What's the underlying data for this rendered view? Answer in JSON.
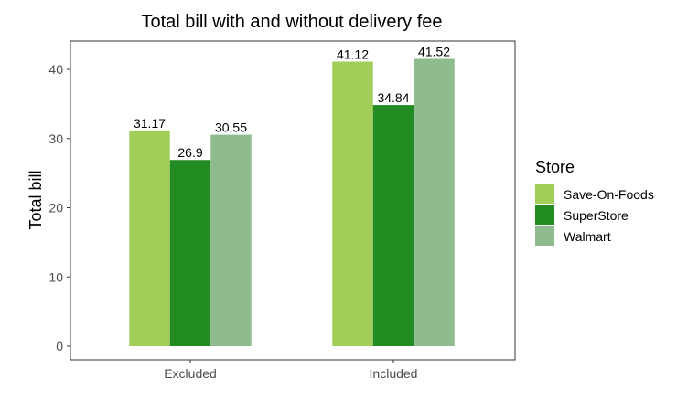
{
  "chart_data": {
    "type": "bar",
    "title": "Total bill with and without delivery fee",
    "xlabel": "",
    "ylabel": "Total bill",
    "categories": [
      "Excluded",
      "Included"
    ],
    "series": [
      {
        "name": "Save-On-Foods",
        "values": [
          31.17,
          41.12
        ],
        "labels": [
          "31.17",
          "41.12"
        ],
        "color": "#a1cd59"
      },
      {
        "name": "SuperStore",
        "values": [
          26.9,
          34.84
        ],
        "labels": [
          "26.9",
          "34.84"
        ],
        "color": "#228b22"
      },
      {
        "name": "Walmart",
        "values": [
          30.55,
          41.52
        ],
        "labels": [
          "30.55",
          "41.52"
        ],
        "color": "#8fbc8f"
      }
    ],
    "ylim": [
      0,
      44
    ],
    "yticks": [
      0,
      10,
      20,
      30,
      40
    ],
    "ytick_labels": [
      "0",
      "10",
      "20",
      "30",
      "40"
    ],
    "grid": false,
    "legend": {
      "title": "Store",
      "position": "right"
    }
  }
}
